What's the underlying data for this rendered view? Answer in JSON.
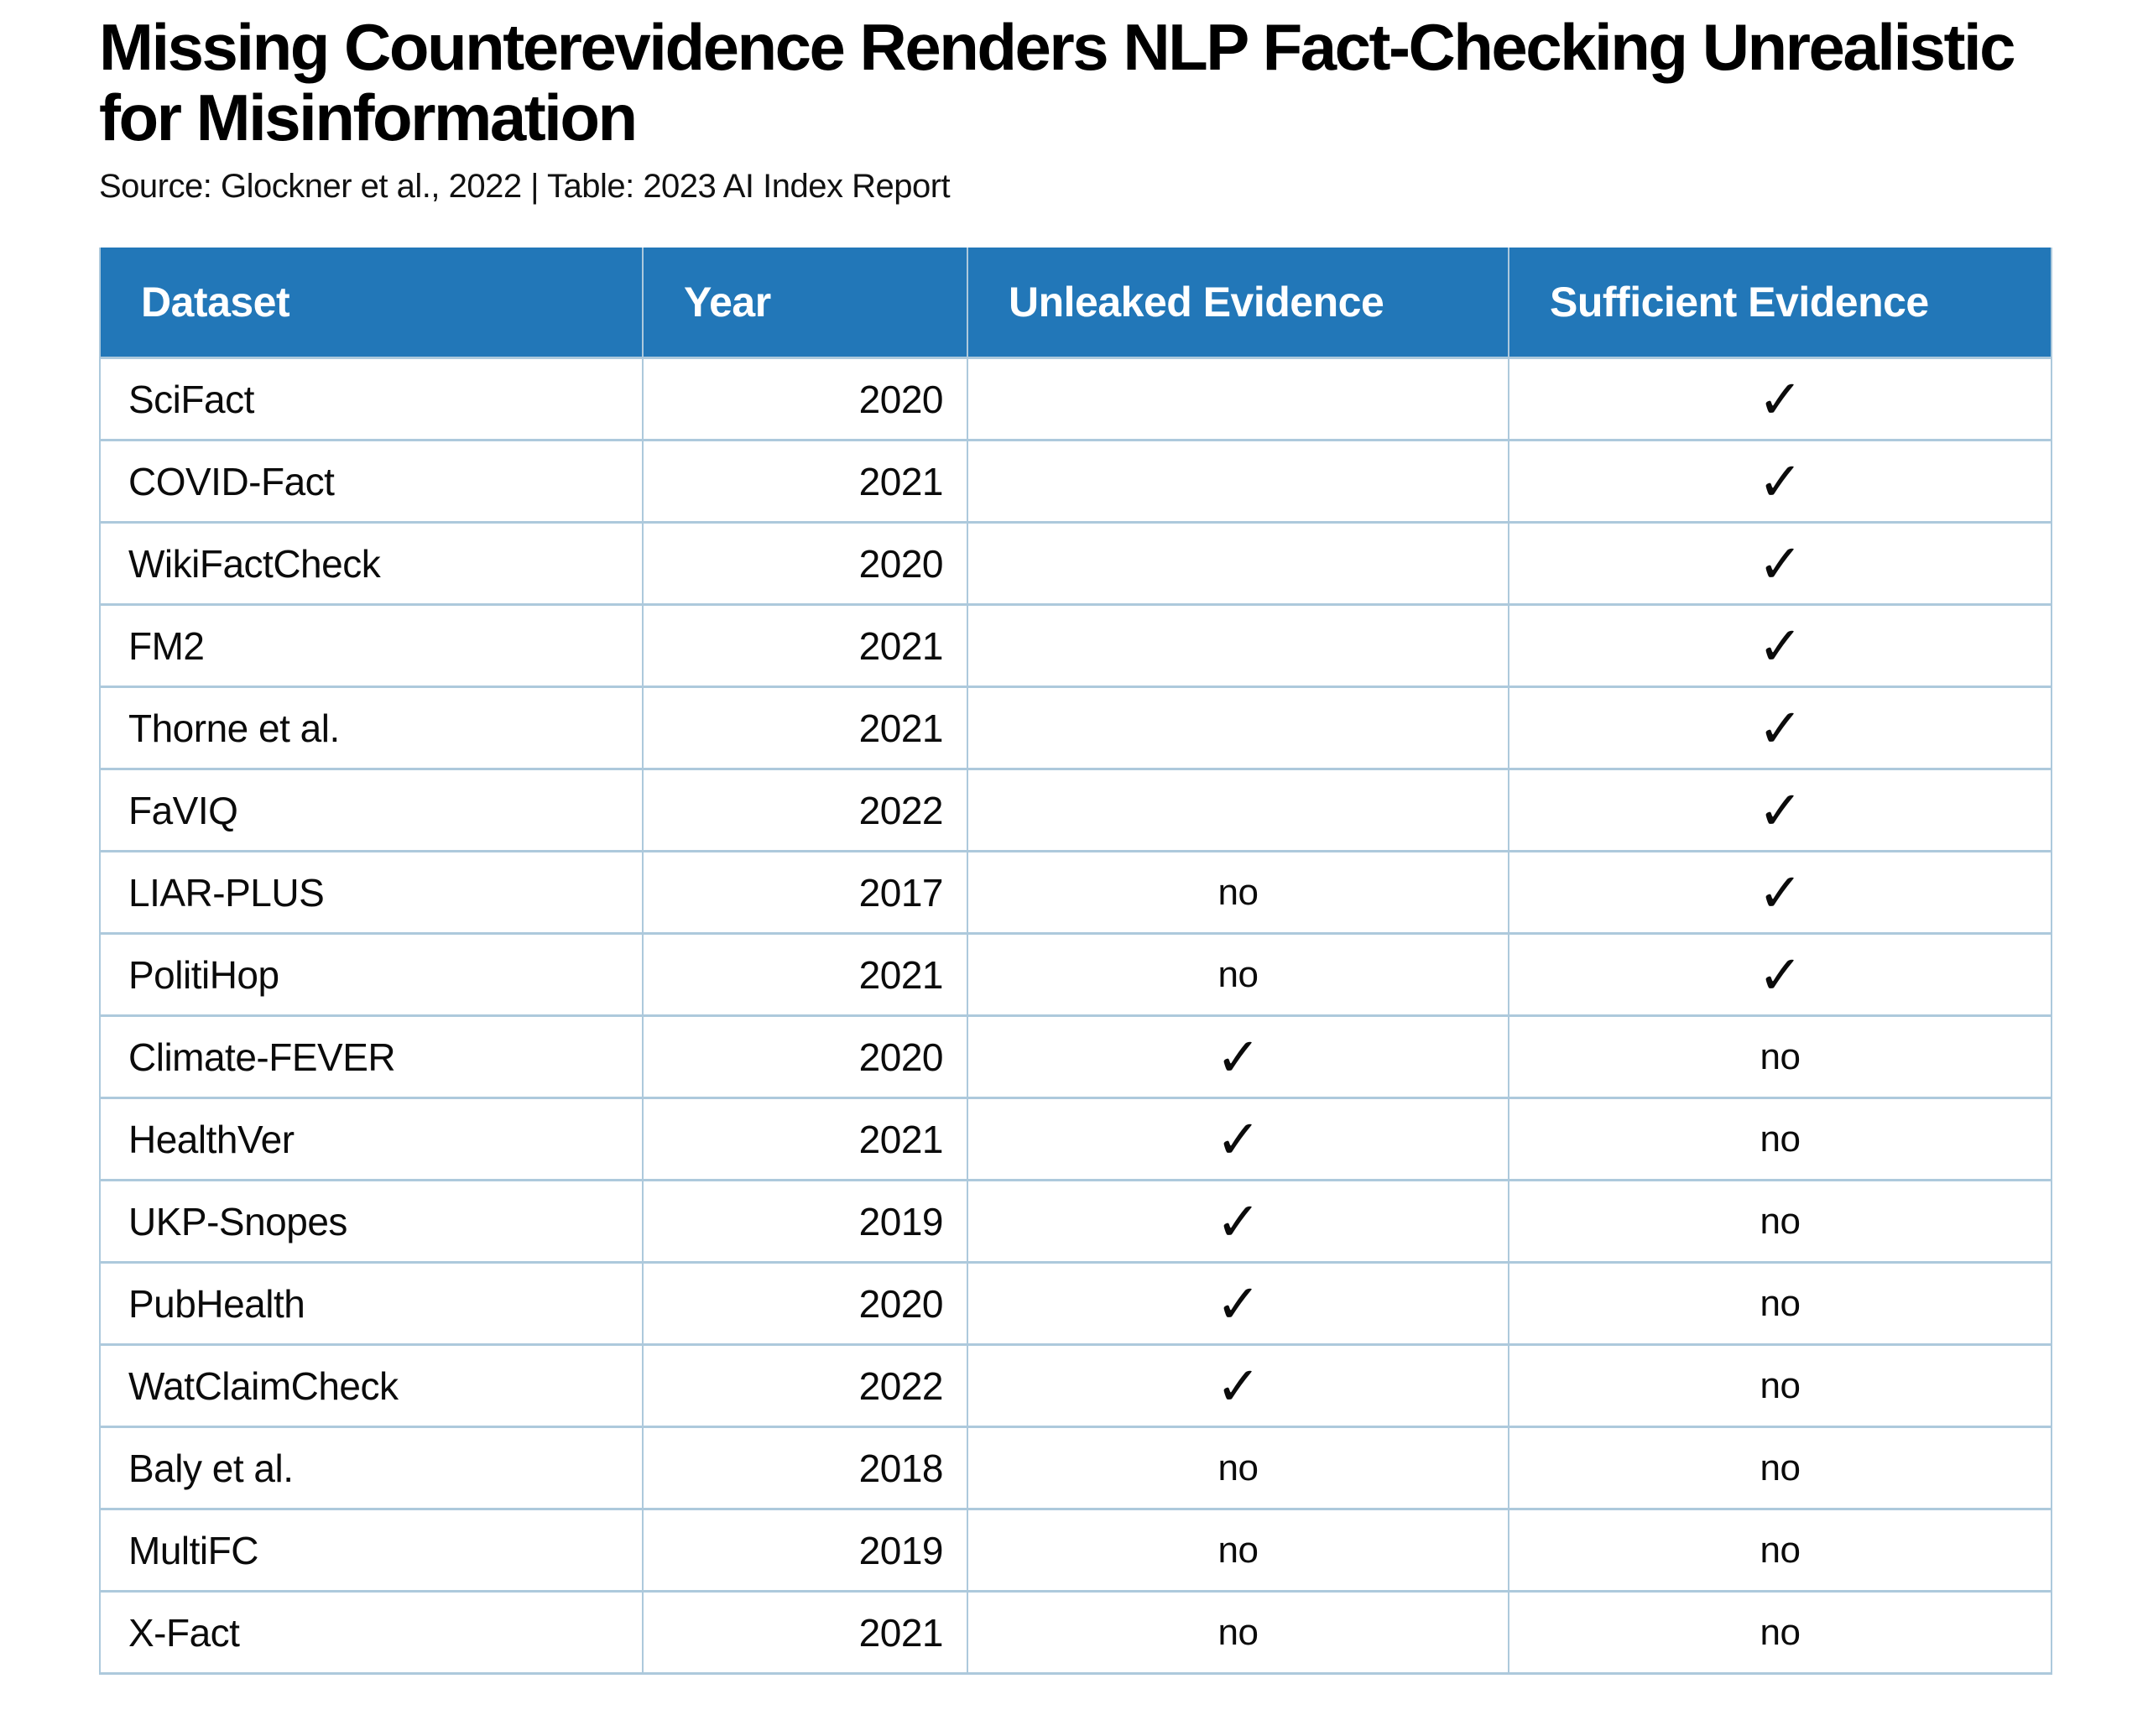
{
  "page": {
    "title_line1": "Missing Counterevidence Renders NLP Fact-Checking Unrealistic",
    "title_line2": "for Misinformation",
    "source_line": "Source: Glockner et al., 2022 | Table: 2023 AI Index Report"
  },
  "colors": {
    "header_blue": "#2277B8",
    "grid_line_light_blue": "#ADC9DC",
    "header_text": "#FFFFFF",
    "body_text": "#0B0B0B"
  },
  "table": {
    "check_symbol": "✓",
    "empty_symbol": "",
    "no_label": "no"
  },
  "chart_data": {
    "type": "table",
    "title": "Missing Counterevidence Renders NLP Fact-Checking Unrealistic for Misinformation",
    "subtitle": "Source: Glockner et al., 2022 | Table: 2023 AI Index Report",
    "columns": [
      "Dataset",
      "Year",
      "Unleaked Evidence",
      "Sufficient Evidence"
    ],
    "rows": [
      [
        "SciFact",
        "2020",
        "",
        "check"
      ],
      [
        "COVID-Fact",
        "2021",
        "",
        "check"
      ],
      [
        "WikiFactCheck",
        "2020",
        "",
        "check"
      ],
      [
        "FM2",
        "2021",
        "",
        "check"
      ],
      [
        "Thorne et al.",
        "2021",
        "",
        "check"
      ],
      [
        "FaVIQ",
        "2022",
        "",
        "check"
      ],
      [
        "LIAR-PLUS",
        "2017",
        "no",
        "check"
      ],
      [
        "PolitiHop",
        "2021",
        "no",
        "check"
      ],
      [
        "Climate-FEVER",
        "2020",
        "check",
        "no"
      ],
      [
        "HealthVer",
        "2021",
        "check",
        "no"
      ],
      [
        "UKP-Snopes",
        "2019",
        "check",
        "no"
      ],
      [
        "PubHealth",
        "2020",
        "check",
        "no"
      ],
      [
        "WatClaimCheck",
        "2022",
        "check",
        "no"
      ],
      [
        "Baly et al.",
        "2018",
        "no",
        "no"
      ],
      [
        "MultiFC",
        "2019",
        "no",
        "no"
      ],
      [
        "X-Fact",
        "2021",
        "no",
        "no"
      ]
    ]
  }
}
